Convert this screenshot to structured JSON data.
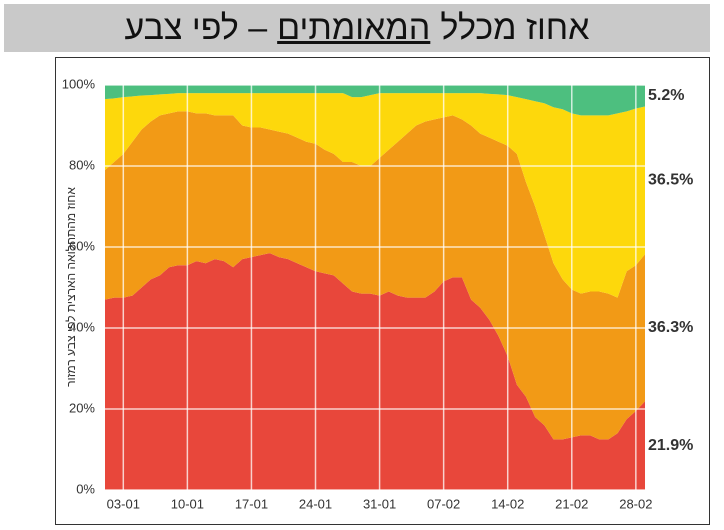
{
  "title_parts": [
    "אחוז מכלל",
    "המאומתים",
    "– לפי צבע"
  ],
  "chart_data": {
    "type": "stacked_area",
    "ylabel": "אחוז מהתחלואה הארצית לפי צבע רמזור",
    "categories": [
      null,
      null,
      "03-01",
      null,
      null,
      null,
      null,
      null,
      null,
      "10-01",
      null,
      null,
      null,
      null,
      null,
      null,
      "17-01",
      null,
      null,
      null,
      null,
      null,
      null,
      "24-01",
      null,
      null,
      null,
      null,
      null,
      null,
      "31-01",
      null,
      null,
      null,
      null,
      null,
      null,
      "07-02",
      null,
      null,
      null,
      null,
      null,
      null,
      "14-02",
      null,
      null,
      null,
      null,
      null,
      null,
      "21-02",
      null,
      null,
      null,
      null,
      null,
      null,
      "28-02",
      null
    ],
    "ylim": [
      0,
      100
    ],
    "yticks": [
      {
        "value": 0,
        "label": "0%"
      },
      {
        "value": 20,
        "label": "20%"
      },
      {
        "value": 40,
        "label": "40%"
      },
      {
        "value": 60,
        "label": "60%"
      },
      {
        "value": 80,
        "label": "80%"
      },
      {
        "value": 100,
        "label": "100%"
      }
    ],
    "grid": true,
    "series": [
      {
        "color": "#e8473b",
        "label_color": "#d9382e",
        "values": [
          47,
          47.5,
          47.5,
          48,
          50,
          52,
          53,
          55,
          55.5,
          55.5,
          56.5,
          56,
          57,
          56.5,
          55,
          57,
          57.5,
          58,
          58.5,
          57.5,
          57,
          56,
          55,
          54,
          53.5,
          53,
          51,
          49,
          48.5,
          48.5,
          48,
          49,
          48,
          47.5,
          47.5,
          47.5,
          49,
          51.5,
          52.5,
          52.5,
          47,
          45,
          42,
          38,
          33,
          26,
          23,
          18,
          16,
          12.5,
          12.5,
          13,
          13.5,
          13.5,
          12.5,
          12.5,
          14,
          17.5,
          19.5,
          21.9
        ],
        "value_labels": [
          null,
          null,
          null,
          null,
          null,
          null,
          null,
          null,
          null,
          null,
          null,
          null,
          null,
          null,
          null,
          null,
          null,
          null,
          null,
          null,
          null,
          null,
          null,
          null,
          null,
          null,
          null,
          null,
          null,
          null,
          null,
          null,
          null,
          null,
          null,
          null,
          null,
          null,
          null,
          null,
          null,
          null,
          null,
          null,
          null,
          null,
          null,
          null,
          null,
          null,
          null,
          null,
          null,
          null,
          null,
          null,
          null,
          null,
          null,
          "21.9%"
        ]
      },
      {
        "color": "#f29a16",
        "label_color": "#e08e0b",
        "values": [
          32,
          33.5,
          35.5,
          38,
          39,
          39,
          39.5,
          38,
          38,
          38,
          36.5,
          37,
          35.5,
          36,
          37.5,
          33,
          32,
          31.5,
          30.5,
          31,
          31,
          31,
          31,
          31.5,
          30.5,
          30,
          30,
          32,
          31.5,
          31.5,
          34,
          35,
          38,
          40.5,
          42.5,
          43.5,
          42.5,
          40.5,
          40,
          39,
          43,
          43,
          45,
          48,
          52,
          57,
          53,
          52,
          47,
          43.5,
          39.5,
          36.5,
          35,
          35.5,
          36.5,
          36,
          33.5,
          36.5,
          36,
          36.3
        ],
        "value_labels": [
          null,
          null,
          null,
          null,
          null,
          null,
          null,
          null,
          null,
          null,
          null,
          null,
          null,
          null,
          null,
          null,
          null,
          null,
          null,
          null,
          null,
          null,
          null,
          null,
          null,
          null,
          null,
          null,
          null,
          null,
          null,
          null,
          null,
          null,
          null,
          null,
          null,
          null,
          null,
          null,
          null,
          null,
          null,
          null,
          null,
          null,
          null,
          null,
          null,
          null,
          null,
          null,
          null,
          null,
          null,
          null,
          null,
          null,
          null,
          "36.3%"
        ]
      },
      {
        "color": "#fdd80c",
        "label_color": "#d8b400",
        "values": [
          17.5,
          15.7,
          14,
          11.2,
          8.4,
          6.5,
          5.2,
          4.8,
          4.5,
          4.5,
          5,
          5,
          5.5,
          5.5,
          5.5,
          8,
          8.5,
          8.5,
          9,
          9.5,
          10,
          11,
          12,
          12.5,
          14,
          15,
          17,
          16,
          17,
          17.5,
          16,
          14,
          12,
          10,
          8,
          7,
          6.5,
          6,
          5.5,
          6.5,
          8,
          10,
          10.8,
          11.7,
          12.5,
          14,
          20.5,
          26,
          32.5,
          38.5,
          42,
          43.5,
          44,
          43.5,
          43.5,
          44,
          45.5,
          39.5,
          38.7,
          36.5
        ],
        "value_labels": [
          null,
          null,
          null,
          null,
          null,
          null,
          null,
          null,
          null,
          null,
          null,
          null,
          null,
          null,
          null,
          null,
          null,
          null,
          null,
          null,
          null,
          null,
          null,
          null,
          null,
          null,
          null,
          null,
          null,
          null,
          null,
          null,
          null,
          null,
          null,
          null,
          null,
          null,
          null,
          null,
          null,
          null,
          null,
          null,
          null,
          null,
          null,
          null,
          null,
          null,
          null,
          null,
          null,
          null,
          null,
          null,
          null,
          null,
          null,
          "36.5%"
        ]
      },
      {
        "color": "#4dbf7f",
        "label_color": "#3aa86b",
        "values": [
          3.5,
          3.3,
          3,
          2.8,
          2.6,
          2.5,
          2.3,
          2.2,
          2,
          2,
          2,
          2,
          2,
          2,
          2,
          2,
          2,
          2,
          2,
          2,
          2,
          2,
          2,
          2,
          2,
          2,
          2,
          3,
          3,
          2.5,
          2,
          2,
          2,
          2,
          2,
          2,
          2,
          2,
          2,
          2,
          2,
          2,
          2.2,
          2.3,
          2.5,
          3,
          3.5,
          4,
          4.5,
          5.5,
          6,
          7,
          7.5,
          7.5,
          7.5,
          7.5,
          7,
          6.5,
          5.8,
          5.2
        ],
        "value_labels": [
          null,
          null,
          null,
          null,
          null,
          null,
          null,
          null,
          null,
          null,
          null,
          null,
          null,
          null,
          null,
          null,
          null,
          null,
          null,
          null,
          null,
          null,
          null,
          null,
          null,
          null,
          null,
          null,
          null,
          null,
          null,
          null,
          null,
          null,
          null,
          null,
          null,
          null,
          null,
          null,
          null,
          null,
          null,
          null,
          null,
          null,
          null,
          null,
          null,
          null,
          null,
          null,
          null,
          null,
          null,
          null,
          null,
          null,
          null,
          "5.2%"
        ]
      }
    ]
  }
}
